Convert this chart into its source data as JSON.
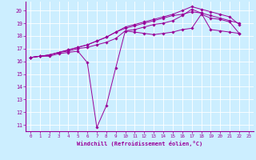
{
  "xlabel": "Windchill (Refroidissement éolien,°C)",
  "bg_color": "#cceeff",
  "line_color": "#990099",
  "xlim": [
    -0.5,
    23.5
  ],
  "ylim": [
    10.5,
    20.7
  ],
  "yticks": [
    11,
    12,
    13,
    14,
    15,
    16,
    17,
    18,
    19,
    20
  ],
  "xticks": [
    0,
    1,
    2,
    3,
    4,
    5,
    6,
    7,
    8,
    9,
    10,
    11,
    12,
    13,
    14,
    15,
    16,
    17,
    18,
    19,
    20,
    21,
    22,
    23
  ],
  "series": [
    [
      16.3,
      16.4,
      16.4,
      16.6,
      16.7,
      16.8,
      15.9,
      10.8,
      12.5,
      15.5,
      18.4,
      18.3,
      18.2,
      18.1,
      18.2,
      18.3,
      18.5,
      18.6,
      19.7,
      19.4,
      19.3,
      19.1,
      18.2
    ],
    [
      16.3,
      16.4,
      16.5,
      16.7,
      16.8,
      17.0,
      17.1,
      17.3,
      17.5,
      17.8,
      18.4,
      18.5,
      18.7,
      18.9,
      19.0,
      19.2,
      19.6,
      20.1,
      19.8,
      18.5,
      18.4,
      18.3,
      18.2
    ],
    [
      16.3,
      16.4,
      16.5,
      16.7,
      16.9,
      17.1,
      17.3,
      17.6,
      17.9,
      18.3,
      18.6,
      18.8,
      19.0,
      19.2,
      19.4,
      19.6,
      19.7,
      19.9,
      19.8,
      19.6,
      19.4,
      19.2,
      19.0
    ],
    [
      16.3,
      16.4,
      16.5,
      16.7,
      16.9,
      17.1,
      17.3,
      17.6,
      17.9,
      18.3,
      18.7,
      18.9,
      19.1,
      19.3,
      19.5,
      19.7,
      20.0,
      20.3,
      20.1,
      19.9,
      19.7,
      19.5,
      18.9
    ]
  ]
}
